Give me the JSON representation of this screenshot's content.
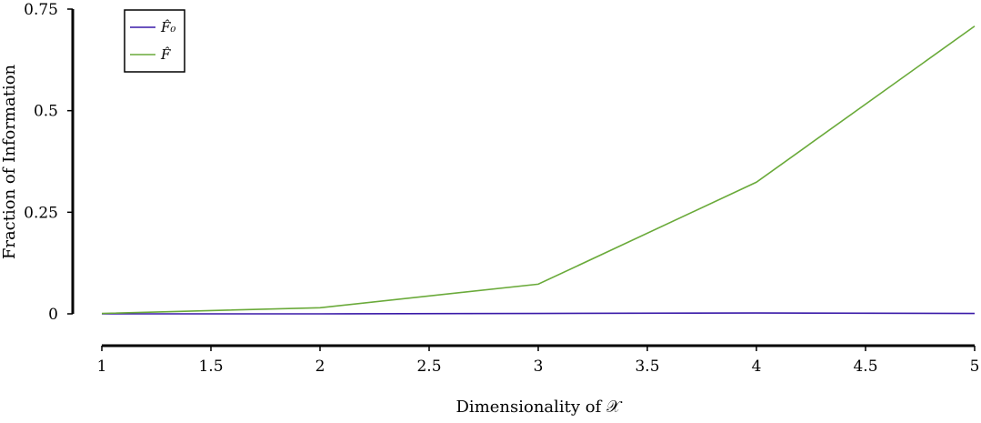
{
  "chart_data": {
    "type": "line",
    "xlabel": "Dimensionality of 𝒳",
    "ylabel": "Fraction of Information",
    "x": [
      1,
      2,
      3,
      4,
      5
    ],
    "xlim": [
      1,
      5
    ],
    "ylim": [
      0,
      0.75
    ],
    "xticks": [
      "1",
      "1.5",
      "2",
      "2.5",
      "3",
      "3.5",
      "4",
      "4.5",
      "5"
    ],
    "yticks": [
      "0",
      "0.25",
      "0.5",
      "0.75"
    ],
    "grid": false,
    "legend_position": "top-left",
    "series": [
      {
        "name": "F̂₀",
        "color": "#3a1aa8",
        "values": [
          0.0,
          0.0,
          0.001,
          0.002,
          0.001
        ]
      },
      {
        "name": "F̂",
        "color": "#6aaa3a",
        "values": [
          0.001,
          0.015,
          0.073,
          0.324,
          0.708
        ]
      }
    ]
  }
}
